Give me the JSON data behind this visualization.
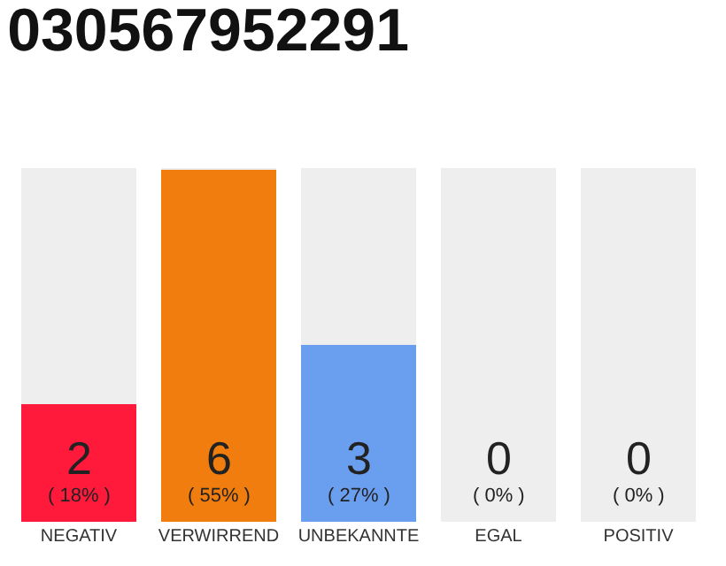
{
  "chart_data": {
    "type": "bar",
    "title": "030567952291",
    "categories": [
      "NEGATIV",
      "VERWIRREND",
      "UNBEKANNTE",
      "EGAL",
      "POSITIV"
    ],
    "stacked": true,
    "series": [
      {
        "colors": [
          "#ff1a3c",
          "#f07d0d",
          "#6a9ff0",
          "#8bc46a",
          "#22aa44"
        ],
        "values": [
          2,
          6,
          3,
          0,
          0
        ],
        "value_labels": [
          "2\n( 18% )",
          "6\n( 55% )",
          "3\n( 27% )",
          "0\n( 0% )",
          "0\n( 0% )"
        ]
      },
      {
        "color": "#eeeeee",
        "values": [
          4,
          0,
          3,
          6,
          6
        ]
      }
    ],
    "ylim": [
      0,
      6
    ],
    "tick_labels": "x"
  }
}
